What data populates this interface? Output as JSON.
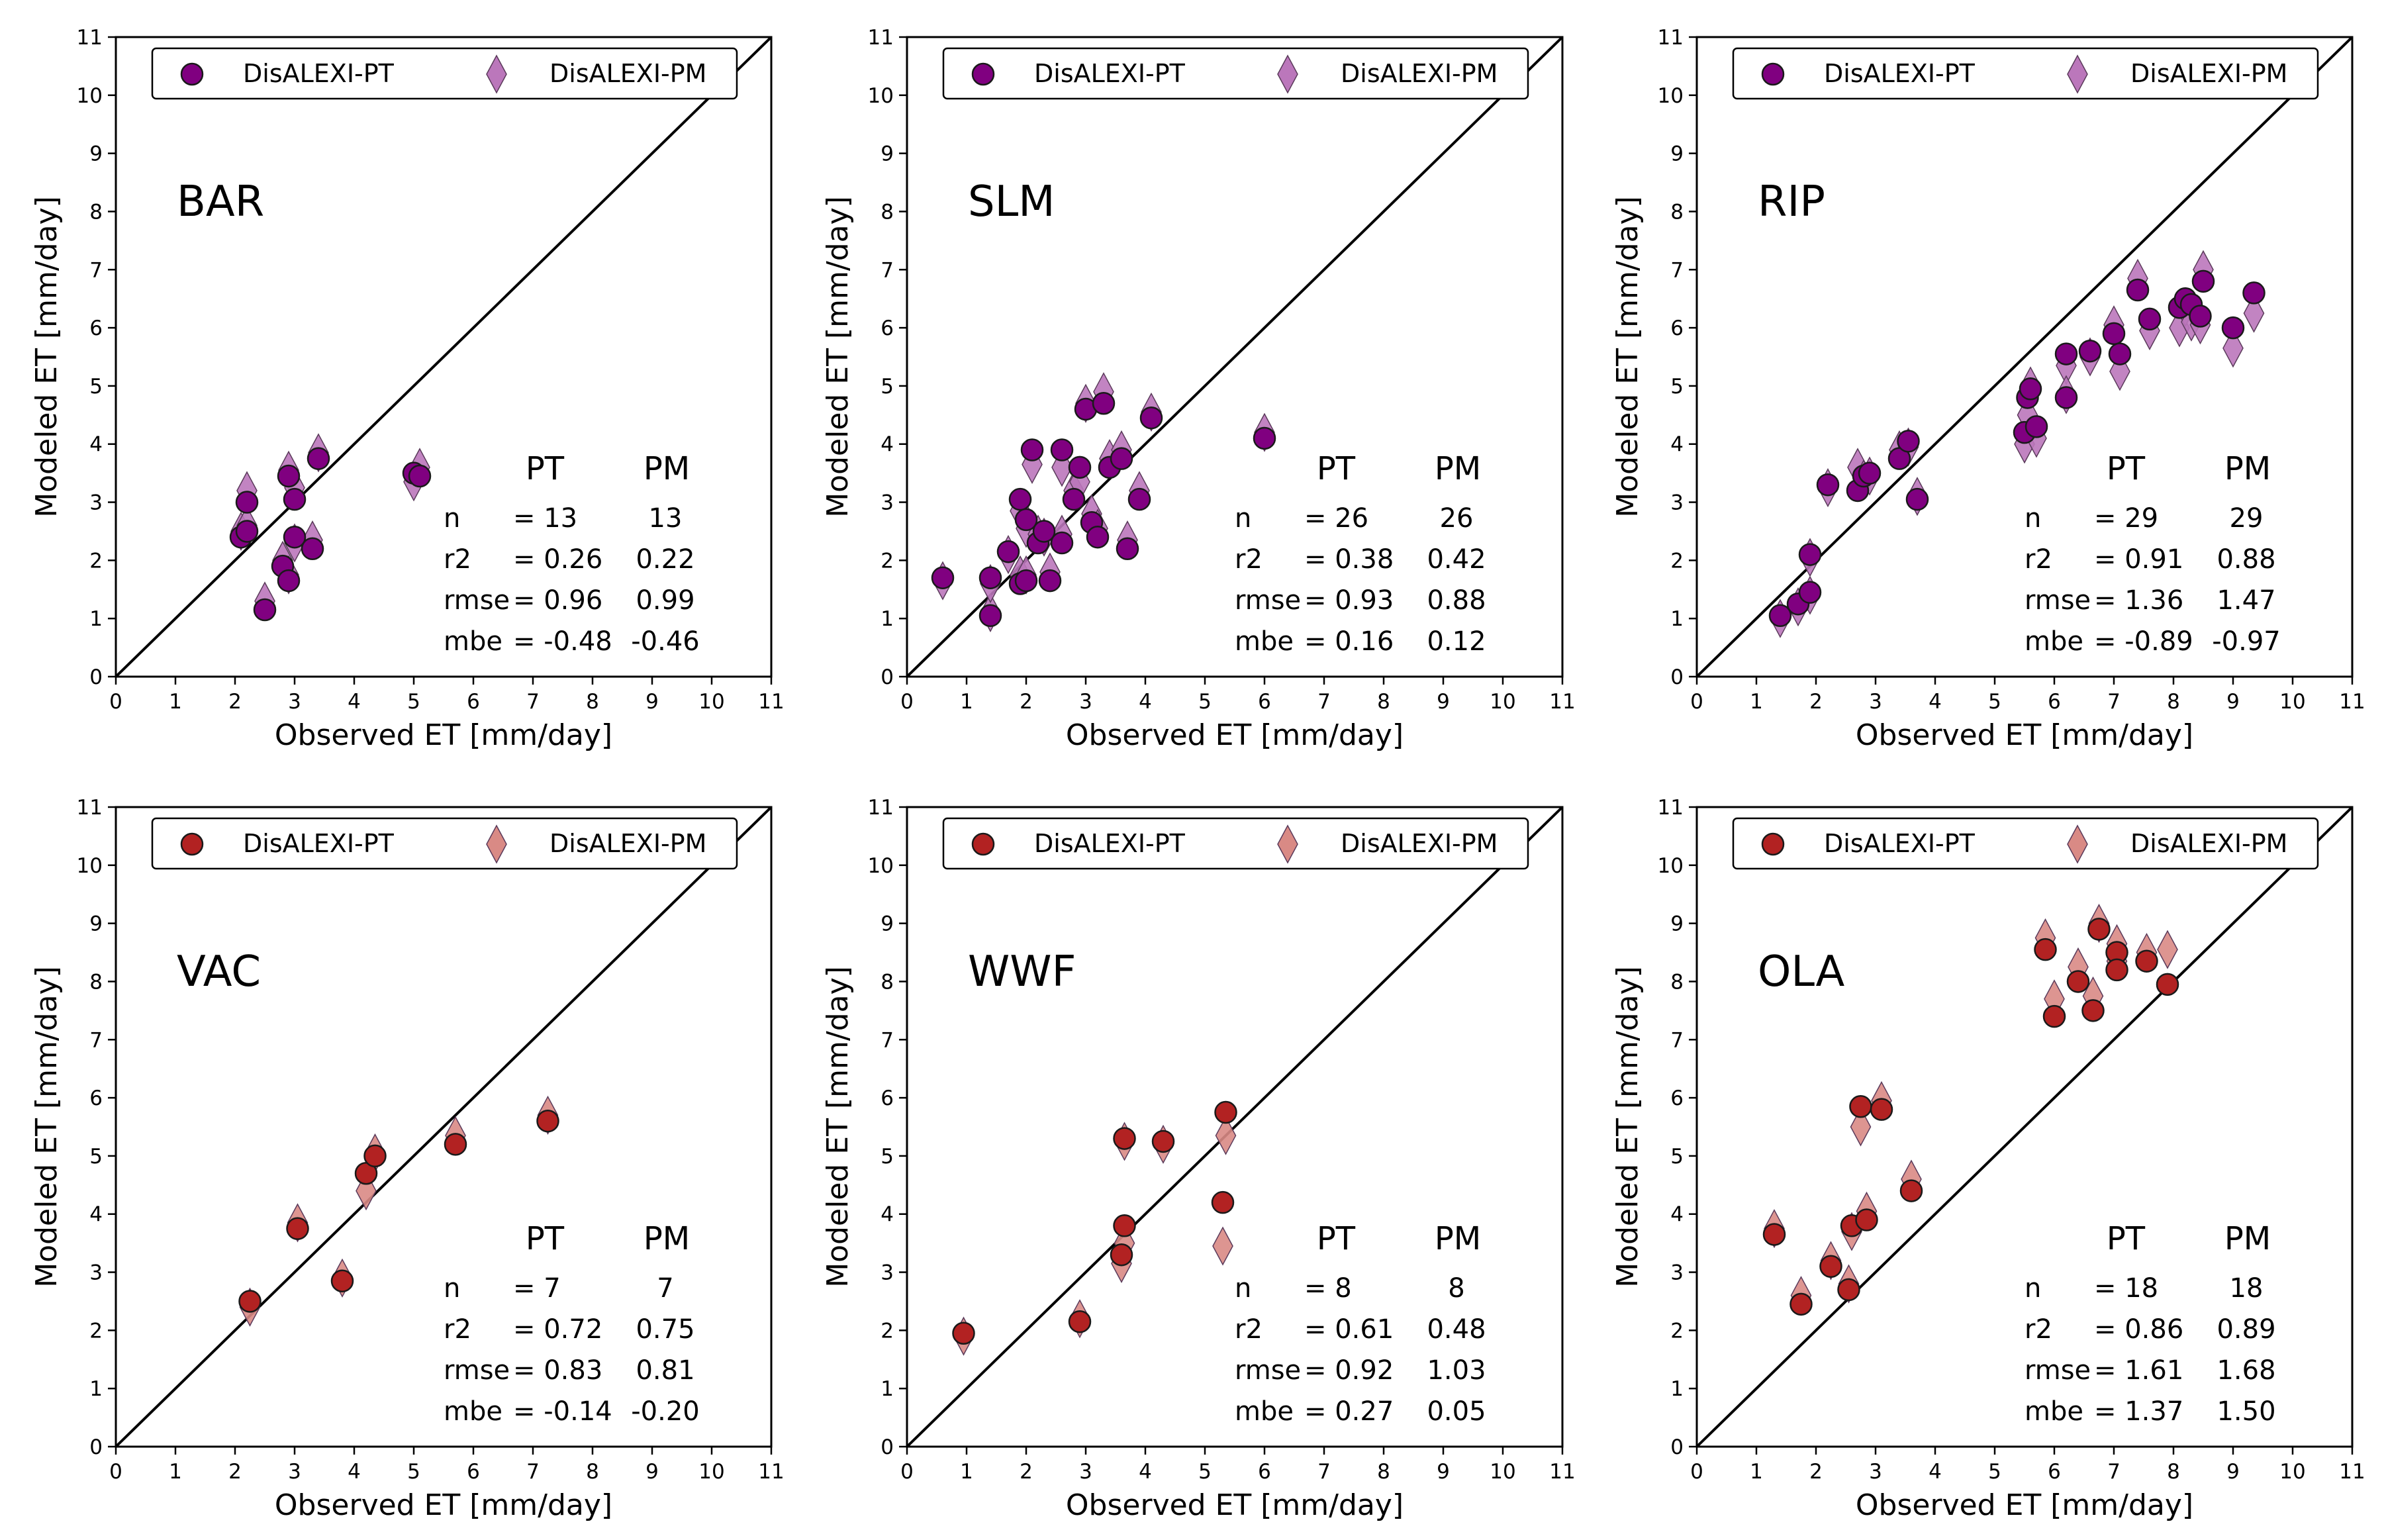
{
  "colors": {
    "purple_pt": "#800080",
    "purple_pm": "#bb77bb",
    "red_pt": "#b22222",
    "red_pm": "#d98a85",
    "axis": "#000000"
  },
  "chart_data": [
    {
      "type": "scatter",
      "site": "BAR",
      "xlabel": "Observed ET [mm/day]",
      "ylabel": "Modeled ET [mm/day]",
      "xlim": [
        0,
        11
      ],
      "ylim": [
        0,
        11
      ],
      "ticks": [
        0,
        1,
        2,
        3,
        4,
        5,
        6,
        7,
        8,
        9,
        10,
        11
      ],
      "palette": "purple",
      "legend": [
        "DisALEXI-PT",
        "DisALEXI-PM"
      ],
      "stats": {
        "header": [
          "PT",
          "PM"
        ],
        "rows": [
          {
            "label": "n",
            "pt": "= 13",
            "pm": "13"
          },
          {
            "label": "r2",
            "pt": "= 0.26",
            "pm": "0.22"
          },
          {
            "label": "rmse",
            "pt": "= 0.96",
            "pm": "0.99"
          },
          {
            "label": "mbe",
            "pt": "= -0.48",
            "pm": "-0.46"
          }
        ]
      },
      "x": [
        2.1,
        2.2,
        2.2,
        2.5,
        2.8,
        2.9,
        2.9,
        3.0,
        3.0,
        3.3,
        3.4,
        5.0,
        5.1
      ],
      "pt": [
        2.4,
        2.5,
        3.0,
        1.15,
        1.9,
        1.65,
        3.45,
        3.05,
        2.4,
        2.2,
        3.75,
        3.5,
        3.45
      ],
      "pm": [
        2.5,
        2.6,
        3.2,
        1.3,
        2.0,
        1.75,
        3.55,
        3.25,
        2.3,
        2.35,
        3.85,
        3.35,
        3.6
      ]
    },
    {
      "type": "scatter",
      "site": "SLM",
      "xlabel": "Observed ET [mm/day]",
      "ylabel": "Modeled ET [mm/day]",
      "xlim": [
        0,
        11
      ],
      "ylim": [
        0,
        11
      ],
      "ticks": [
        0,
        1,
        2,
        3,
        4,
        5,
        6,
        7,
        8,
        9,
        10,
        11
      ],
      "palette": "purple",
      "legend": [
        "DisALEXI-PT",
        "DisALEXI-PM"
      ],
      "stats": {
        "header": [
          "PT",
          "PM"
        ],
        "rows": [
          {
            "label": "n",
            "pt": "= 26",
            "pm": "26"
          },
          {
            "label": "r2",
            "pt": "= 0.38",
            "pm": "0.42"
          },
          {
            "label": "rmse",
            "pt": "= 0.93",
            "pm": "0.88"
          },
          {
            "label": "mbe",
            "pt": "= 0.16",
            "pm": "0.12"
          }
        ]
      },
      "x": [
        0.6,
        1.4,
        1.4,
        1.7,
        1.9,
        1.9,
        2.0,
        2.0,
        2.1,
        2.2,
        2.3,
        2.4,
        2.6,
        2.6,
        2.8,
        2.9,
        3.0,
        3.1,
        3.2,
        3.3,
        3.4,
        3.6,
        3.7,
        3.9,
        4.1,
        6.0
      ],
      "pt": [
        1.7,
        1.05,
        1.7,
        2.15,
        1.6,
        3.05,
        2.7,
        1.65,
        3.9,
        2.3,
        2.5,
        1.65,
        3.9,
        2.3,
        3.05,
        3.6,
        4.6,
        2.65,
        2.4,
        4.7,
        3.6,
        3.75,
        2.2,
        3.05,
        4.45,
        4.1
      ],
      "pm": [
        1.65,
        1.1,
        1.6,
        2.1,
        1.75,
        2.85,
        2.55,
        1.75,
        3.65,
        2.45,
        2.4,
        1.8,
        3.6,
        2.45,
        3.2,
        3.35,
        4.7,
        2.8,
        2.55,
        4.9,
        3.75,
        3.9,
        2.35,
        3.2,
        4.55,
        4.2
      ]
    },
    {
      "type": "scatter",
      "site": "RIP",
      "xlabel": "Observed ET [mm/day]",
      "ylabel": "Modeled ET [mm/day]",
      "xlim": [
        0,
        11
      ],
      "ylim": [
        0,
        11
      ],
      "ticks": [
        0,
        1,
        2,
        3,
        4,
        5,
        6,
        7,
        8,
        9,
        10,
        11
      ],
      "palette": "purple",
      "legend": [
        "DisALEXI-PT",
        "DisALEXI-PM"
      ],
      "stats": {
        "header": [
          "PT",
          "PM"
        ],
        "rows": [
          {
            "label": "n",
            "pt": "= 29",
            "pm": "29"
          },
          {
            "label": "r2",
            "pt": "= 0.91",
            "pm": "0.88"
          },
          {
            "label": "rmse",
            "pt": "= 1.36",
            "pm": "1.47"
          },
          {
            "label": "mbe",
            "pt": "= -0.89",
            "pm": "-0.97"
          }
        ]
      },
      "x": [
        1.4,
        1.7,
        1.9,
        1.9,
        2.2,
        2.7,
        2.8,
        2.9,
        3.4,
        3.55,
        3.7,
        5.5,
        5.55,
        5.6,
        5.7,
        6.2,
        6.2,
        6.6,
        7.0,
        7.1,
        7.4,
        7.6,
        8.1,
        8.2,
        8.3,
        8.45,
        8.5,
        9.0,
        9.35
      ],
      "pt": [
        1.05,
        1.25,
        1.45,
        2.1,
        3.3,
        3.2,
        3.45,
        3.5,
        3.75,
        4.05,
        3.05,
        4.2,
        4.8,
        4.95,
        4.3,
        5.55,
        4.8,
        5.6,
        5.9,
        5.55,
        6.65,
        6.15,
        6.35,
        6.5,
        6.4,
        6.2,
        6.8,
        6.0,
        6.6
      ],
      "pm": [
        1.0,
        1.2,
        1.4,
        2.05,
        3.25,
        3.6,
        3.4,
        3.45,
        3.9,
        3.95,
        3.1,
        4.0,
        4.5,
        5.0,
        4.1,
        5.35,
        4.85,
        5.5,
        6.05,
        5.25,
        6.85,
        5.95,
        6.0,
        6.35,
        6.1,
        6.05,
        7.0,
        5.65,
        6.25
      ]
    },
    {
      "type": "scatter",
      "site": "VAC",
      "xlabel": "Observed ET [mm/day]",
      "ylabel": "Modeled ET [mm/day]",
      "xlim": [
        0,
        11
      ],
      "ylim": [
        0,
        11
      ],
      "ticks": [
        0,
        1,
        2,
        3,
        4,
        5,
        6,
        7,
        8,
        9,
        10,
        11
      ],
      "palette": "red",
      "legend": [
        "DisALEXI-PT",
        "DisALEXI-PM"
      ],
      "stats": {
        "header": [
          "PT",
          "PM"
        ],
        "rows": [
          {
            "label": "n",
            "pt": "= 7",
            "pm": "7"
          },
          {
            "label": "r2",
            "pt": "= 0.72",
            "pm": "0.75"
          },
          {
            "label": "rmse",
            "pt": "= 0.83",
            "pm": "0.81"
          },
          {
            "label": "mbe",
            "pt": "= -0.14",
            "pm": "-0.20"
          }
        ]
      },
      "x": [
        2.25,
        3.05,
        3.8,
        4.2,
        4.35,
        5.7,
        7.25
      ],
      "pt": [
        2.5,
        3.75,
        2.85,
        4.7,
        5.0,
        5.2,
        5.6
      ],
      "pm": [
        2.4,
        3.85,
        2.9,
        4.4,
        5.05,
        5.35,
        5.7
      ]
    },
    {
      "type": "scatter",
      "site": "WWF",
      "xlabel": "Observed ET [mm/day]",
      "ylabel": "Modeled ET [mm/day]",
      "xlim": [
        0,
        11
      ],
      "ylim": [
        0,
        11
      ],
      "ticks": [
        0,
        1,
        2,
        3,
        4,
        5,
        6,
        7,
        8,
        9,
        10,
        11
      ],
      "palette": "red",
      "legend": [
        "DisALEXI-PT",
        "DisALEXI-PM"
      ],
      "stats": {
        "header": [
          "PT",
          "PM"
        ],
        "rows": [
          {
            "label": "n",
            "pt": "= 8",
            "pm": "8"
          },
          {
            "label": "r2",
            "pt": "= 0.61",
            "pm": "0.48"
          },
          {
            "label": "rmse",
            "pt": "= 0.92",
            "pm": "1.03"
          },
          {
            "label": "mbe",
            "pt": "= 0.27",
            "pm": "0.05"
          }
        ]
      },
      "x": [
        0.95,
        2.9,
        3.6,
        3.65,
        3.65,
        4.3,
        5.3,
        5.35
      ],
      "pt": [
        1.95,
        2.15,
        3.3,
        5.3,
        3.8,
        5.25,
        4.2,
        5.75
      ],
      "pm": [
        1.9,
        2.2,
        3.15,
        5.25,
        3.5,
        5.2,
        3.45,
        5.35
      ]
    },
    {
      "type": "scatter",
      "site": "OLA",
      "xlabel": "Observed ET [mm/day]",
      "ylabel": "Modeled ET [mm/day]",
      "xlim": [
        0,
        11
      ],
      "ylim": [
        0,
        11
      ],
      "ticks": [
        0,
        1,
        2,
        3,
        4,
        5,
        6,
        7,
        8,
        9,
        10,
        11
      ],
      "palette": "red",
      "legend": [
        "DisALEXI-PT",
        "DisALEXI-PM"
      ],
      "stats": {
        "header": [
          "PT",
          "PM"
        ],
        "rows": [
          {
            "label": "n",
            "pt": "= 18",
            "pm": "18"
          },
          {
            "label": "r2",
            "pt": "= 0.86",
            "pm": "0.89"
          },
          {
            "label": "rmse",
            "pt": "= 1.61",
            "pm": "1.68"
          },
          {
            "label": "mbe",
            "pt": "= 1.37",
            "pm": "1.50"
          }
        ]
      },
      "x": [
        1.3,
        1.75,
        2.25,
        2.55,
        2.6,
        2.75,
        2.85,
        3.1,
        3.6,
        5.85,
        6.0,
        6.4,
        6.65,
        6.75,
        7.05,
        7.05,
        7.55,
        7.9
      ],
      "pt": [
        3.65,
        2.45,
        3.1,
        2.7,
        3.8,
        5.85,
        3.9,
        5.8,
        4.4,
        8.55,
        7.4,
        8.0,
        7.5,
        8.9,
        8.5,
        8.2,
        8.35,
        7.95
      ],
      "pm": [
        3.75,
        2.6,
        3.2,
        2.8,
        3.7,
        5.5,
        4.05,
        5.95,
        4.6,
        8.75,
        7.7,
        8.25,
        7.75,
        9.0,
        8.65,
        8.35,
        8.5,
        8.55
      ]
    }
  ]
}
